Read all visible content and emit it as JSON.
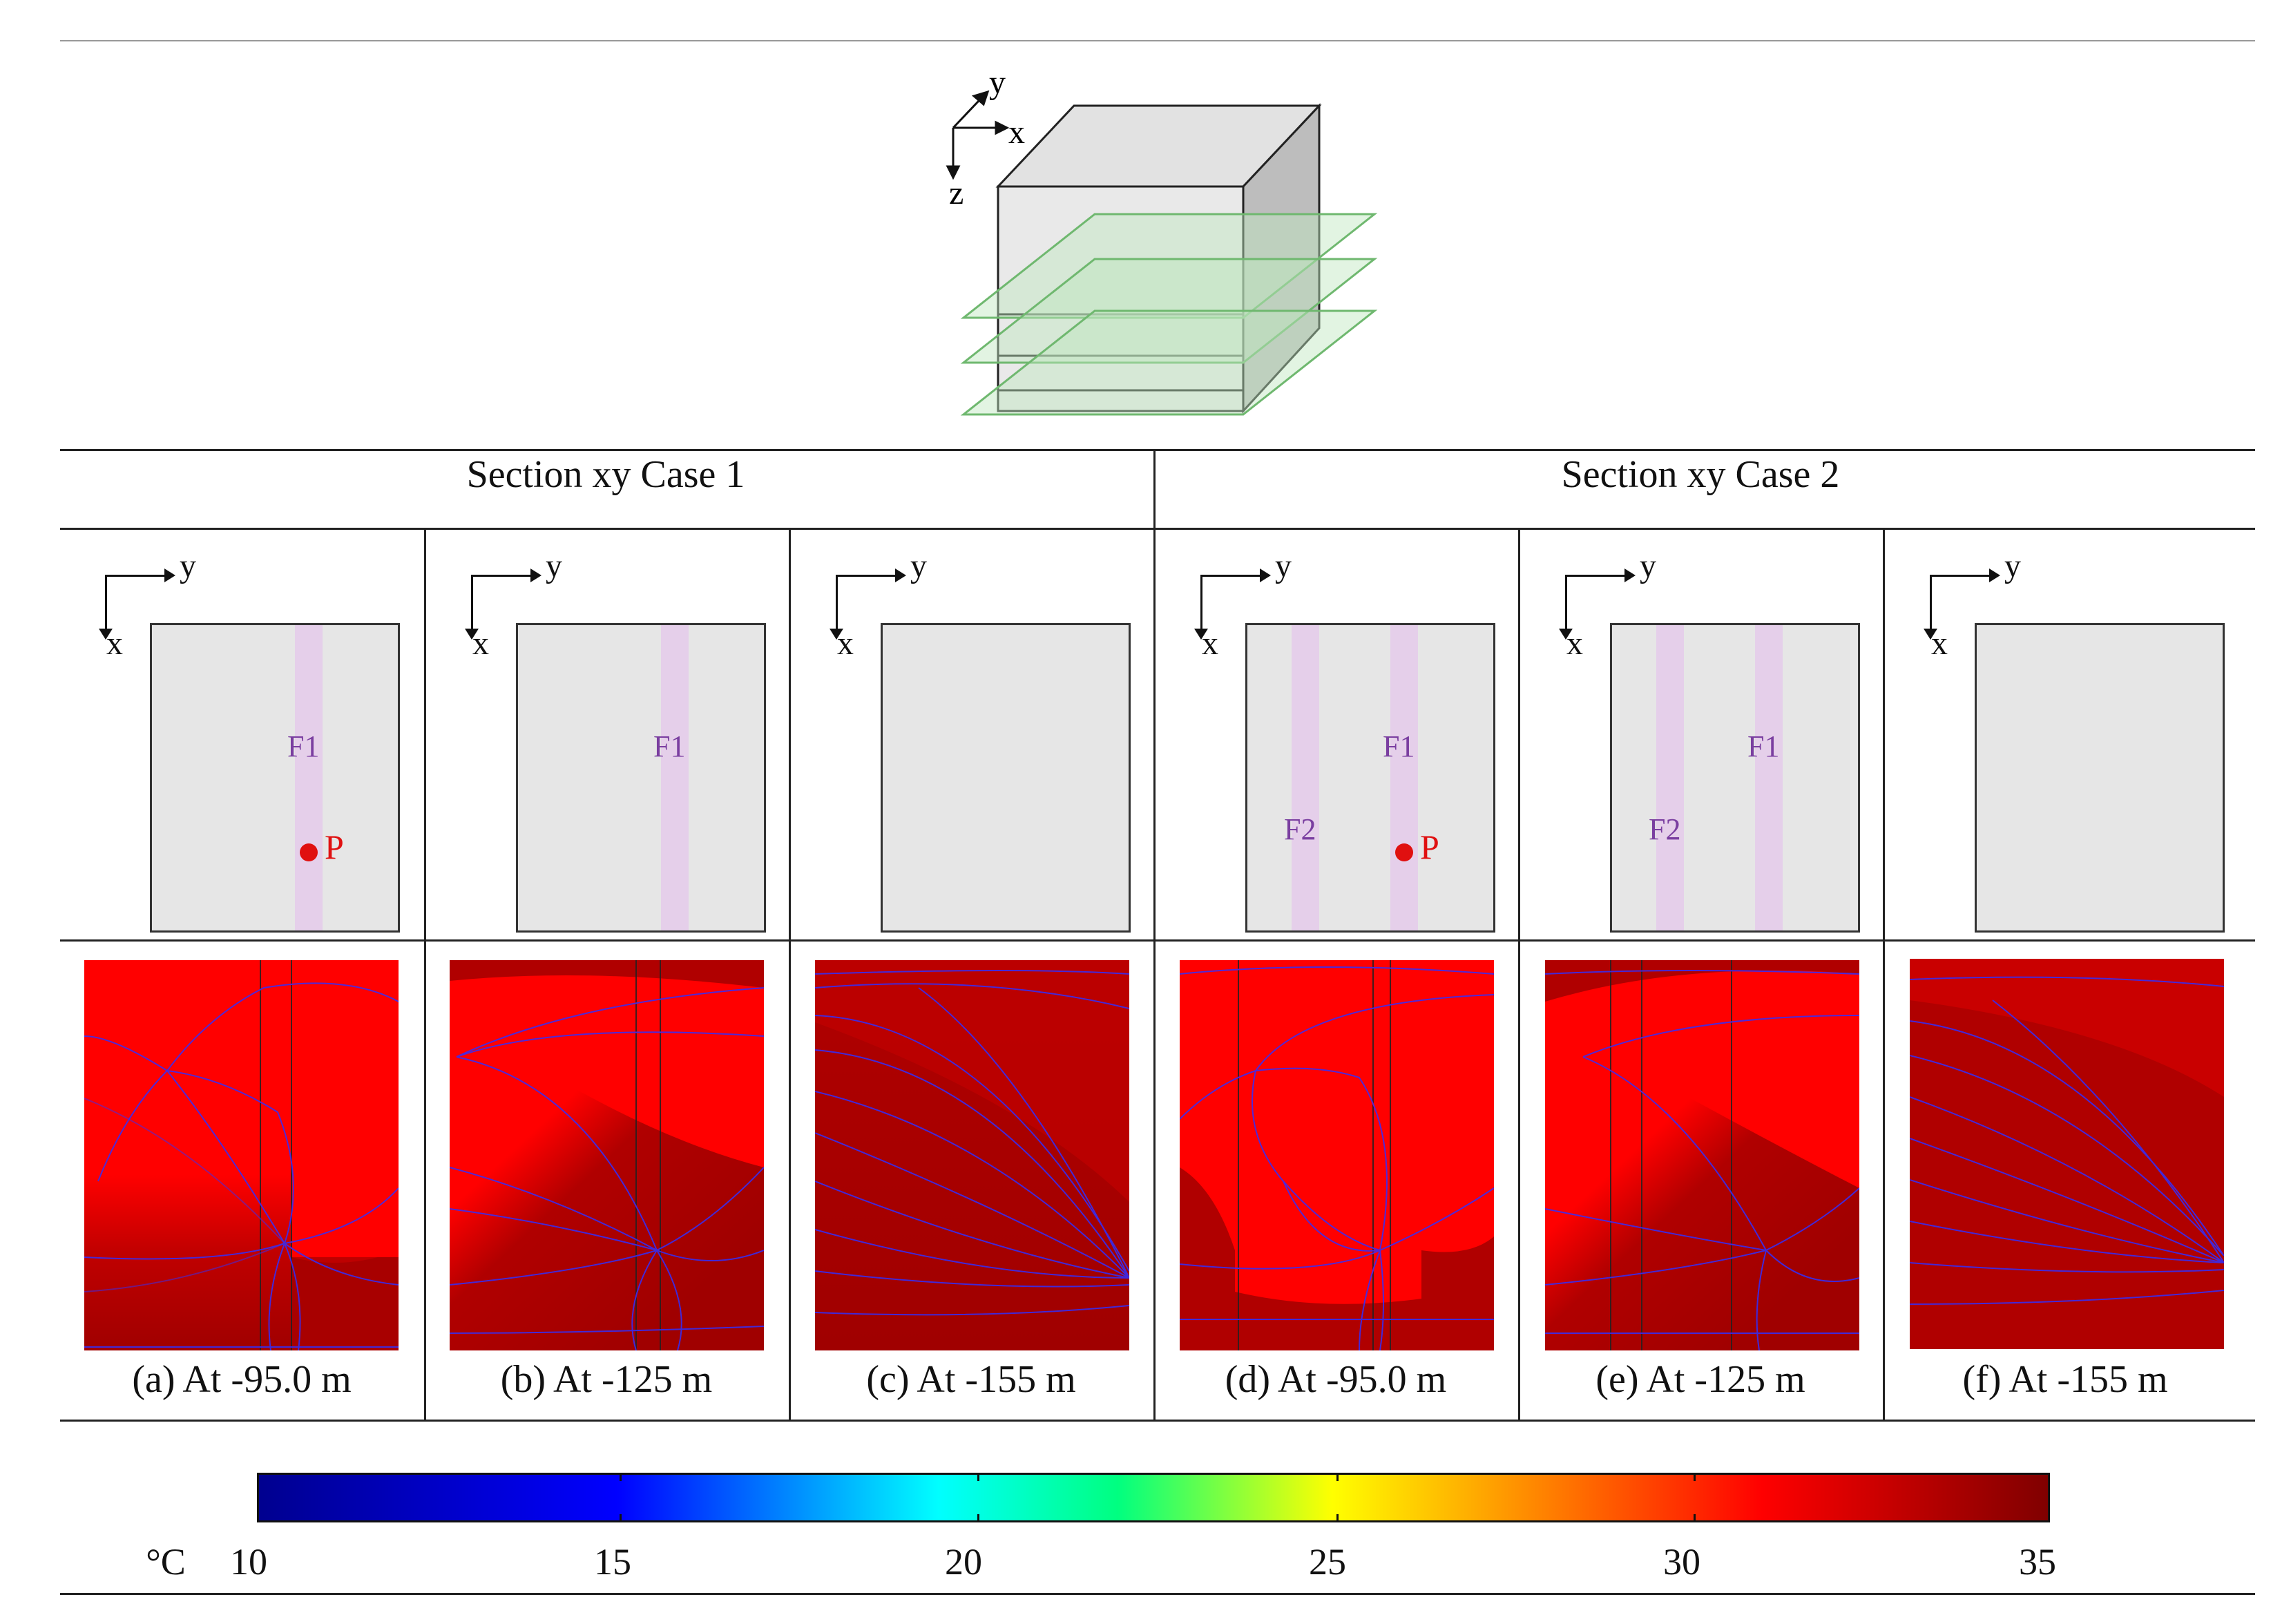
{
  "diagram": {
    "axis_y": "y",
    "axis_x": "x",
    "axis_z": "z"
  },
  "sections": [
    {
      "title": "Section xy Case 1"
    },
    {
      "title": "Section xy Case 2"
    }
  ],
  "panels": [
    {
      "caption": "(a) At -95.0 m",
      "fractures": [
        {
          "label": "F1"
        }
      ],
      "point": "P"
    },
    {
      "caption": "(b) At -125 m",
      "fractures": [
        {
          "label": "F1"
        }
      ],
      "point": ""
    },
    {
      "caption": "(c) At -155 m",
      "fractures": [],
      "point": ""
    },
    {
      "caption": "(d) At -95.0 m",
      "fractures": [
        {
          "label": "F2"
        },
        {
          "label": "F1"
        }
      ],
      "point": "P"
    },
    {
      "caption": "(e) At -125 m",
      "fractures": [
        {
          "label": "F2"
        },
        {
          "label": "F1"
        }
      ],
      "point": ""
    },
    {
      "caption": "(f) At -155 m",
      "fractures": [],
      "point": ""
    }
  ],
  "plan_axes": {
    "y": "y",
    "x": "x"
  },
  "colorbar": {
    "unit": "°C",
    "ticks": [
      "10",
      "15",
      "20",
      "25",
      "30",
      "35"
    ],
    "colors": [
      "#00008f",
      "#0000ff",
      "#00ffff",
      "#ffff00",
      "#ff0000",
      "#800000"
    ]
  }
}
